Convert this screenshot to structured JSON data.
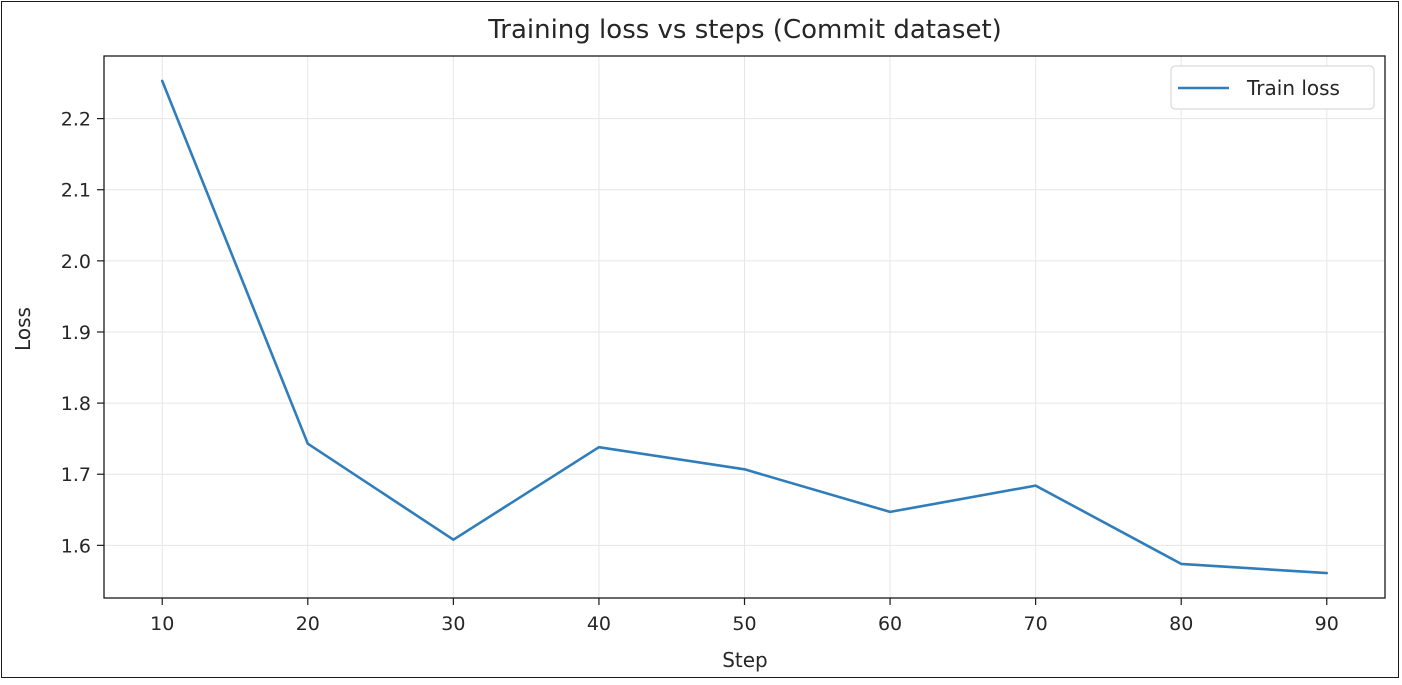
{
  "chart_data": {
    "type": "line",
    "title": "Training loss vs steps (Commit dataset)",
    "xlabel": "Step",
    "ylabel": "Loss",
    "x": [
      10,
      20,
      30,
      40,
      50,
      60,
      70,
      80,
      90
    ],
    "series": [
      {
        "name": "Train loss",
        "color": "#2f7dbb",
        "values": [
          2.253,
          1.743,
          1.608,
          1.738,
          1.707,
          1.647,
          1.684,
          1.574,
          1.561
        ]
      }
    ],
    "xticks": [
      10,
      20,
      30,
      40,
      50,
      60,
      70,
      80,
      90
    ],
    "xtick_labels": [
      "10",
      "20",
      "30",
      "40",
      "50",
      "60",
      "70",
      "80",
      "90"
    ],
    "yticks": [
      1.6,
      1.7,
      1.8,
      1.9,
      2.0,
      2.1,
      2.2
    ],
    "ytick_labels": [
      "1.6",
      "1.7",
      "1.8",
      "1.9",
      "2.0",
      "2.1",
      "2.2"
    ],
    "xlim": [
      6,
      94
    ],
    "ylim": [
      1.526,
      2.288
    ],
    "grid": true,
    "legend_position": "top-right"
  }
}
